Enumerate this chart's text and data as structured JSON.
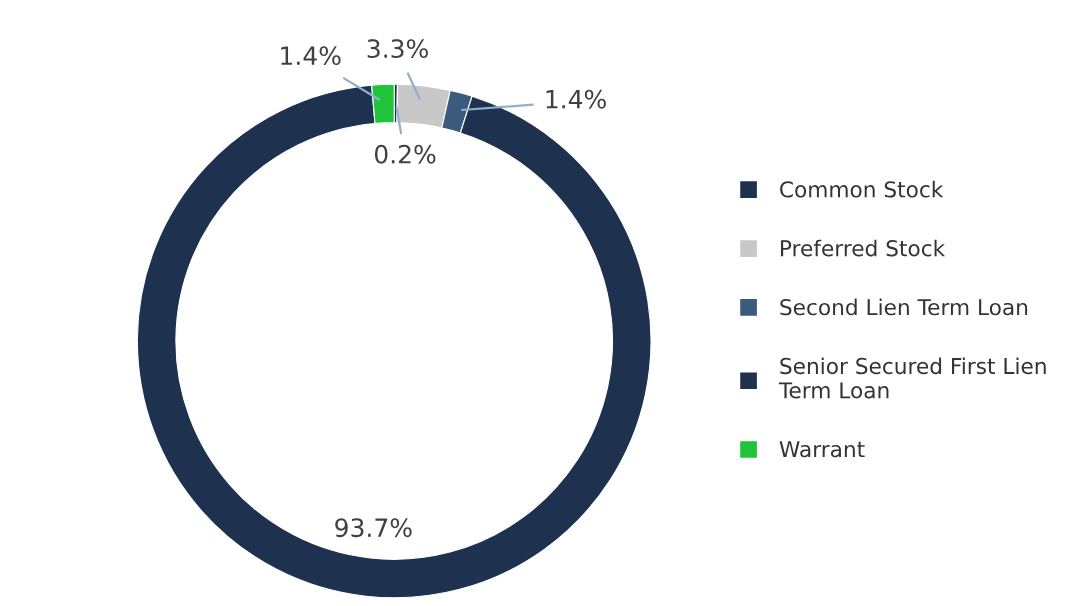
{
  "chart_data": {
    "type": "donut",
    "categories": [
      "Common Stock",
      "Preferred Stock",
      "Second Lien Term Loan",
      "Senior Secured First Lien\nTerm Loan",
      "Warrant"
    ],
    "values": [
      0.2,
      3.3,
      1.4,
      93.7,
      1.4
    ],
    "colors": [
      "#1e3250",
      "#c8c8c8",
      "#3b5b7d",
      "#1e3250",
      "#1fc43a"
    ],
    "value_labels": [
      "0.2%",
      "3.3%",
      "1.4%",
      "93.7%",
      "1.4%"
    ],
    "legend": "right"
  }
}
